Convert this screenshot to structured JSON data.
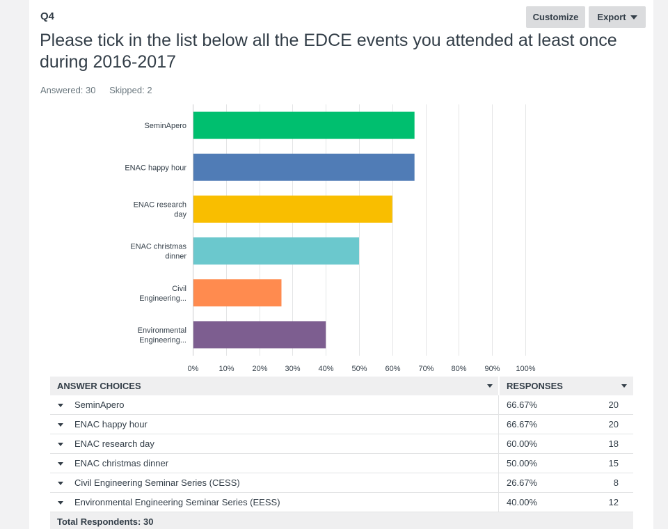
{
  "question": {
    "number": "Q4",
    "title": "Please tick in the list below all the EDCE events you attended at least once during 2016-2017",
    "answered": "Answered: 30",
    "skipped": "Skipped: 2"
  },
  "toolbar": {
    "customize_label": "Customize",
    "export_label": "Export"
  },
  "chart_data": {
    "type": "bar",
    "orientation": "horizontal",
    "categories": [
      [
        "SeminApero"
      ],
      [
        "ENAC happy hour"
      ],
      [
        "ENAC research",
        "day"
      ],
      [
        "ENAC christmas",
        "dinner"
      ],
      [
        "Civil",
        "Engineering..."
      ],
      [
        "Environmental",
        "Engineering..."
      ]
    ],
    "values": [
      66.67,
      66.67,
      60.0,
      50.0,
      26.67,
      40.0
    ],
    "colors": [
      "#00bf6f",
      "#507cb6",
      "#f9be00",
      "#6bc8cd",
      "#ff8b4f",
      "#7d5e90"
    ],
    "xticks": [
      "0%",
      "10%",
      "20%",
      "30%",
      "40%",
      "50%",
      "60%",
      "70%",
      "80%",
      "90%",
      "100%"
    ],
    "xlim": [
      0,
      100
    ],
    "grid": true
  },
  "table": {
    "header_choices": "ANSWER CHOICES",
    "header_responses": "RESPONSES",
    "rows": [
      {
        "label": "SeminApero",
        "pct": "66.67%",
        "count": "20"
      },
      {
        "label": "ENAC happy hour",
        "pct": "66.67%",
        "count": "20"
      },
      {
        "label": "ENAC research day",
        "pct": "60.00%",
        "count": "18"
      },
      {
        "label": "ENAC christmas dinner",
        "pct": "50.00%",
        "count": "15"
      },
      {
        "label": "Civil Engineering Seminar Series (CESS)",
        "pct": "26.67%",
        "count": "8"
      },
      {
        "label": "Environmental Engineering Seminar Series (EESS)",
        "pct": "40.00%",
        "count": "12"
      }
    ],
    "total": "Total Respondents: 30"
  }
}
